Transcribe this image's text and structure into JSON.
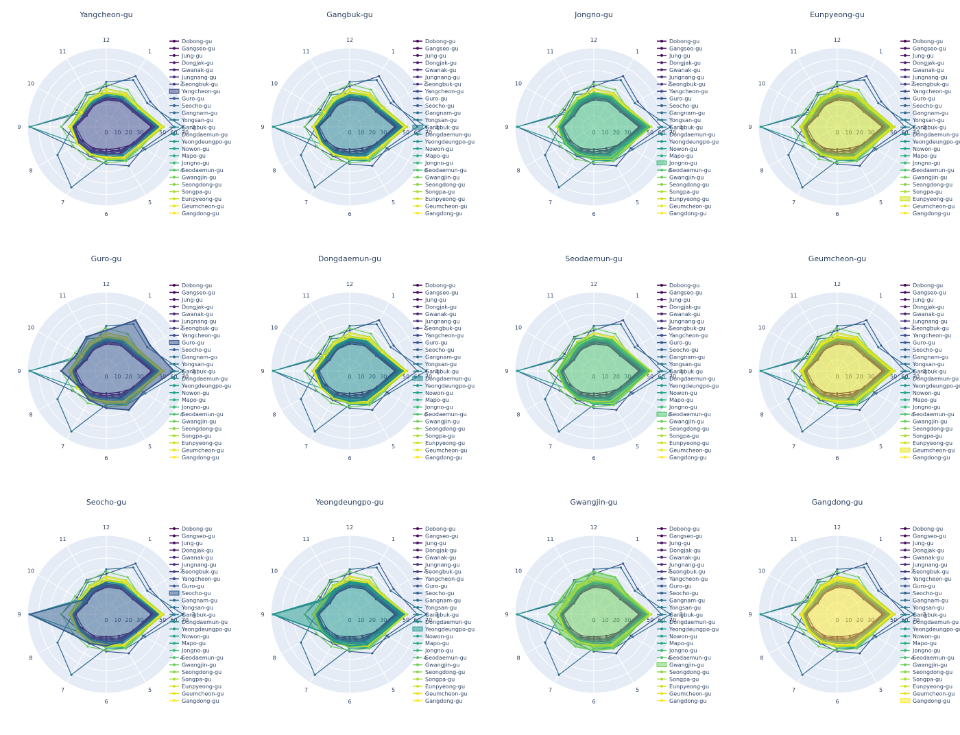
{
  "chart_data": {
    "type": "radar",
    "angular_categories": [
      "1",
      "2",
      "3",
      "4",
      "5",
      "6",
      "7",
      "8",
      "9",
      "10",
      "11",
      "12"
    ],
    "radial_ticks": [
      0,
      10,
      20,
      30,
      40,
      50,
      60,
      70
    ],
    "radial_range": [
      0,
      70
    ],
    "legend_placement": "right of each panel",
    "colorscale": "viridis",
    "series": [
      {
        "name": "Dobong-gu",
        "color": "#440154",
        "values": [
          27,
          28,
          40,
          30,
          22,
          20,
          22,
          25,
          32,
          20,
          22,
          25
        ]
      },
      {
        "name": "Gangseo-gu",
        "color": "#46085c",
        "values": [
          28,
          29,
          42,
          29,
          24,
          22,
          25,
          28,
          30,
          22,
          24,
          26
        ]
      },
      {
        "name": "Jung-gu",
        "color": "#471063",
        "values": [
          26,
          27,
          40,
          28,
          25,
          20,
          24,
          26,
          28,
          21,
          22,
          24
        ]
      },
      {
        "name": "Dongjak-gu",
        "color": "#481a6c",
        "values": [
          27,
          27,
          41,
          29,
          26,
          22,
          23,
          24,
          27,
          20,
          23,
          25
        ]
      },
      {
        "name": "Gwanak-gu",
        "color": "#472374",
        "values": [
          28,
          29,
          43,
          31,
          27,
          24,
          26,
          27,
          29,
          22,
          24,
          26
        ]
      },
      {
        "name": "Jungnang-gu",
        "color": "#46307e",
        "values": [
          29,
          30,
          44,
          30,
          28,
          23,
          25,
          27,
          28,
          23,
          25,
          27
        ]
      },
      {
        "name": "Seongbuk-gu",
        "color": "#423a84",
        "values": [
          30,
          31,
          45,
          29,
          27,
          25,
          24,
          26,
          30,
          21,
          23,
          27
        ]
      },
      {
        "name": "Yangcheon-gu",
        "color": "#3e4989",
        "values": [
          27,
          28,
          42,
          30,
          25,
          24,
          26,
          28,
          29,
          22,
          23,
          25
        ]
      },
      {
        "name": "Guro-gu",
        "color": "#38558c",
        "values": [
          52,
          45,
          60,
          38,
          40,
          33,
          30,
          28,
          40,
          30,
          35,
          36
        ]
      },
      {
        "name": "Seocho-gu",
        "color": "#33608d",
        "values": [
          28,
          30,
          44,
          30,
          28,
          28,
          30,
          35,
          68,
          25,
          26,
          28
        ]
      },
      {
        "name": "Gangnam-gu",
        "color": "#2e6c8e",
        "values": [
          48,
          42,
          68,
          40,
          35,
          30,
          62,
          50,
          30,
          26,
          25,
          40
        ]
      },
      {
        "name": "Yongsan-gu",
        "color": "#29788e",
        "values": [
          30,
          31,
          46,
          31,
          29,
          26,
          27,
          28,
          31,
          28,
          33,
          30
        ]
      },
      {
        "name": "Gangbuk-gu",
        "color": "#26828e",
        "values": [
          29,
          30,
          45,
          30,
          28,
          25,
          26,
          27,
          30,
          22,
          24,
          27
        ]
      },
      {
        "name": "Dongdaemun-gu",
        "color": "#228d8d",
        "values": [
          30,
          31,
          47,
          32,
          30,
          27,
          27,
          28,
          30,
          24,
          25,
          28
        ]
      },
      {
        "name": "Yeongdeungpo-gu",
        "color": "#1f988b",
        "values": [
          31,
          32,
          48,
          33,
          31,
          28,
          28,
          30,
          68,
          27,
          26,
          29
        ]
      },
      {
        "name": "Nowon-gu",
        "color": "#20a386",
        "values": [
          32,
          33,
          50,
          34,
          33,
          29,
          28,
          29,
          32,
          25,
          27,
          30
        ]
      },
      {
        "name": "Mapo-gu",
        "color": "#28ae80",
        "values": [
          33,
          34,
          50,
          35,
          34,
          30,
          27,
          28,
          31,
          24,
          26,
          31
        ]
      },
      {
        "name": "Jongno-gu",
        "color": "#3bbb75",
        "values": [
          31,
          32,
          49,
          33,
          32,
          28,
          29,
          30,
          31,
          26,
          27,
          30
        ]
      },
      {
        "name": "Seodaemun-gu",
        "color": "#4ec36b",
        "values": [
          32,
          33,
          49,
          34,
          32,
          29,
          28,
          29,
          32,
          27,
          28,
          31
        ]
      },
      {
        "name": "Gwangjin-gu",
        "color": "#6ccd5a",
        "values": [
          38,
          34,
          48,
          36,
          35,
          32,
          33,
          34,
          40,
          32,
          34,
          38
        ]
      },
      {
        "name": "Seongdong-gu",
        "color": "#89d548",
        "values": [
          34,
          34,
          50,
          34,
          32,
          28,
          28,
          30,
          33,
          27,
          29,
          33
        ]
      },
      {
        "name": "Songpa-gu",
        "color": "#addc30",
        "values": [
          35,
          35,
          51,
          35,
          33,
          29,
          29,
          30,
          33,
          28,
          30,
          34
        ]
      },
      {
        "name": "Eunpyeong-gu",
        "color": "#d0e11c",
        "values": [
          33,
          34,
          50,
          34,
          32,
          28,
          28,
          30,
          32,
          26,
          28,
          31
        ]
      },
      {
        "name": "Geumcheon-gu",
        "color": "#e7e419",
        "values": [
          32,
          33,
          48,
          33,
          31,
          27,
          28,
          29,
          31,
          25,
          27,
          30
        ]
      },
      {
        "name": "Gangdong-gu",
        "color": "#fde725",
        "values": [
          34,
          33,
          49,
          33,
          31,
          27,
          28,
          29,
          32,
          26,
          28,
          33
        ]
      }
    ],
    "panels": [
      {
        "title": "Yangcheon-gu",
        "highlight": "Yangcheon-gu"
      },
      {
        "title": "Gangbuk-gu",
        "highlight": "Gangbuk-gu"
      },
      {
        "title": "Jongno-gu",
        "highlight": "Jongno-gu"
      },
      {
        "title": "Eunpyeong-gu",
        "highlight": "Eunpyeong-gu"
      },
      {
        "title": "Guro-gu",
        "highlight": "Guro-gu"
      },
      {
        "title": "Dongdaemun-gu",
        "highlight": "Dongdaemun-gu"
      },
      {
        "title": "Seodaemun-gu",
        "highlight": "Seodaemun-gu"
      },
      {
        "title": "Geumcheon-gu",
        "highlight": "Geumcheon-gu"
      },
      {
        "title": "Seocho-gu",
        "highlight": "Seocho-gu"
      },
      {
        "title": "Yeongdeungpo-gu",
        "highlight": "Yeongdeungpo-gu"
      },
      {
        "title": "Gwangjin-gu",
        "highlight": "Gwangjin-gu"
      },
      {
        "title": "Gangdong-gu",
        "highlight": "Gangdong-gu"
      }
    ],
    "polar_bgcolor": "#e5ecf6",
    "grid_color": "#ffffff"
  }
}
